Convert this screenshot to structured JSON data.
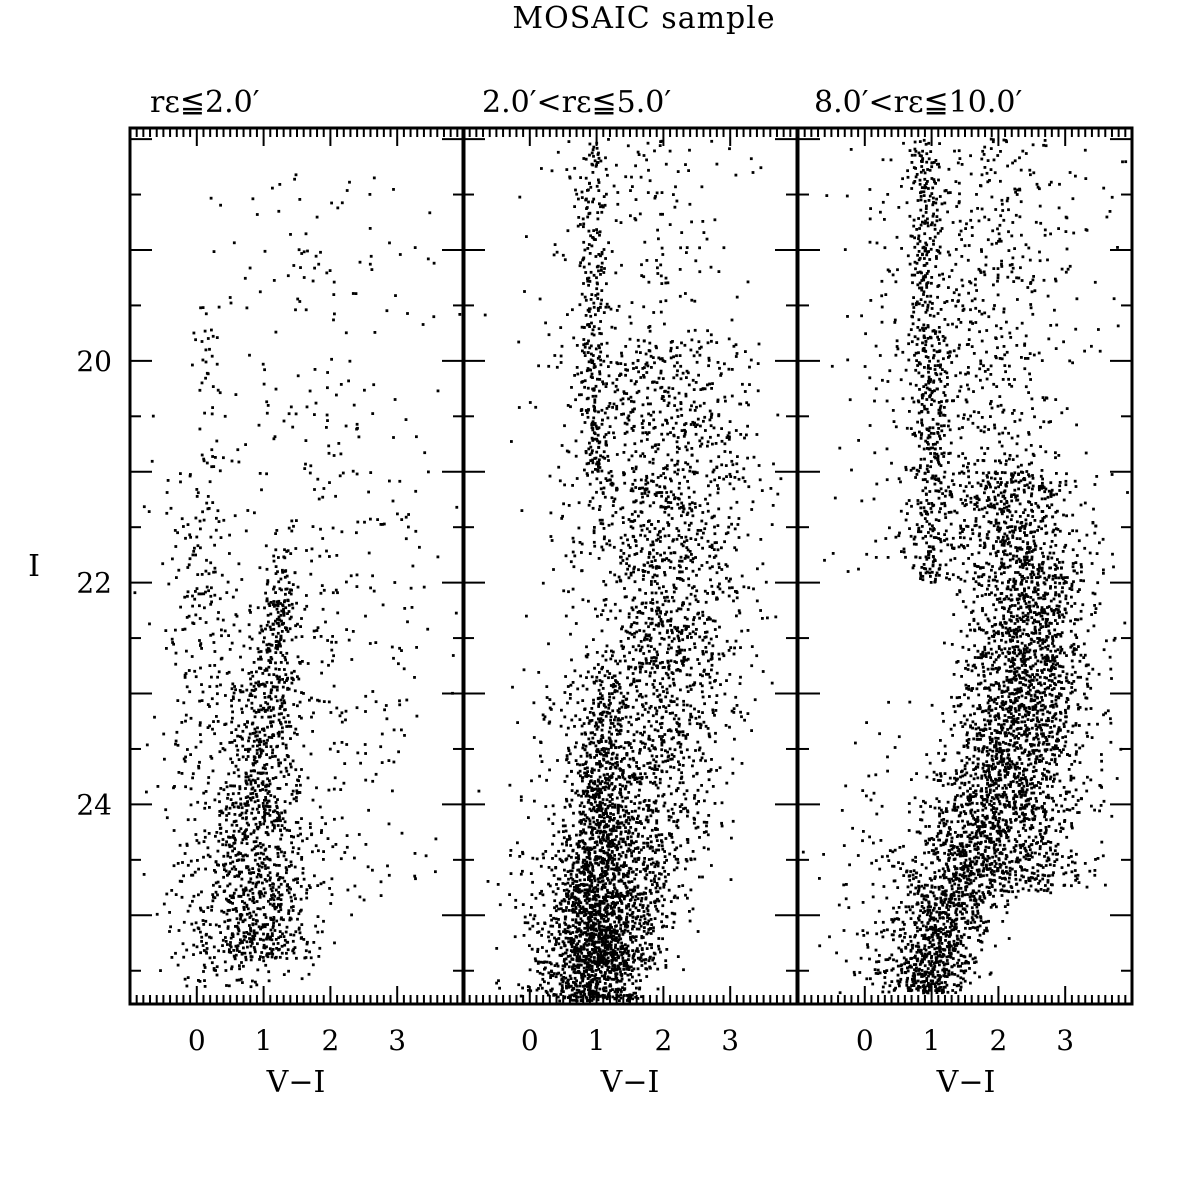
{
  "figure": {
    "suptitle": "MOSAIC sample"
  },
  "chart_data": [
    {
      "type": "scatter",
      "title": "rε≦2.0′",
      "xlabel": "V−I",
      "ylabel": "I",
      "xlim": [
        -1.0,
        4.0
      ],
      "ylim": [
        25.8,
        17.9
      ],
      "x_ticks": [
        0,
        1,
        2,
        3
      ],
      "y_ticks": [
        20,
        22,
        24
      ],
      "components": [
        {
          "n": 1100,
          "x_center": [
            [
              25.4,
              0.95
            ],
            [
              24.0,
              0.95
            ],
            [
              22.0,
              1.25
            ],
            [
              21.5,
              1.35
            ]
          ],
          "x_sigma": [
            [
              25.4,
              0.45
            ],
            [
              24.0,
              0.28
            ],
            [
              22.0,
              0.14
            ],
            [
              21.5,
              0.08
            ]
          ],
          "y_range": [
            21.4,
            25.4
          ],
          "y_bias": 0.6
        },
        {
          "n": 500,
          "x_center": [
            [
              25.6,
              0.5
            ],
            [
              24.0,
              0.2
            ],
            [
              22.0,
              0.15
            ],
            [
              21.0,
              0.1
            ]
          ],
          "x_sigma": [
            [
              25.6,
              0.55
            ],
            [
              22.0,
              0.35
            ]
          ],
          "y_range": [
            20.8,
            25.7
          ],
          "y_bias": 0.4
        },
        {
          "n": 300,
          "x_center": [
            [
              25.0,
              1.6
            ],
            [
              23.0,
              2.2
            ],
            [
              21.0,
              2.5
            ]
          ],
          "x_sigma": [
            [
              25.0,
              0.7
            ],
            [
              21.0,
              0.8
            ]
          ],
          "y_range": [
            21.0,
            25.0
          ],
          "y_bias": 0.0
        },
        {
          "n": 140,
          "x_center": [
            [
              21.0,
              2.0
            ],
            [
              18.5,
              1.8
            ]
          ],
          "x_sigma": [
            [
              21.0,
              0.9
            ]
          ],
          "y_range": [
            18.3,
            21.0
          ],
          "y_bias": 0.0
        },
        {
          "n": 40,
          "x_center": [
            [
              21.0,
              0.2
            ],
            [
              19.5,
              0.1
            ]
          ],
          "x_sigma": [
            [
              21.0,
              0.12
            ]
          ],
          "y_range": [
            19.5,
            21.0
          ],
          "y_bias": 0.0
        }
      ]
    },
    {
      "type": "scatter",
      "title": "2.0′<rε≦5.0′",
      "xlabel": "V−I",
      "xlim": [
        -1.0,
        4.0
      ],
      "ylim": [
        25.8,
        17.9
      ],
      "x_ticks": [
        0,
        1,
        2,
        3
      ],
      "y_ticks": [
        20,
        22,
        24
      ],
      "components": [
        {
          "n": 1700,
          "x_center": [
            [
              25.8,
              0.95
            ],
            [
              24.5,
              1.0
            ],
            [
              23.5,
              1.1
            ],
            [
              22.6,
              1.2
            ]
          ],
          "x_sigma": [
            [
              25.8,
              0.38
            ],
            [
              24.5,
              0.28
            ],
            [
              22.6,
              0.1
            ]
          ],
          "y_range": [
            22.5,
            25.8
          ],
          "y_bias": 0.8
        },
        {
          "n": 2300,
          "x_center": [
            [
              25.5,
              1.3
            ],
            [
              24.0,
              1.8
            ],
            [
              22.0,
              2.1
            ],
            [
              20.0,
              2.0
            ]
          ],
          "x_sigma": [
            [
              25.5,
              0.35
            ],
            [
              24.0,
              0.55
            ],
            [
              22.0,
              0.65
            ],
            [
              20.0,
              0.7
            ]
          ],
          "y_range": [
            19.8,
            25.5
          ],
          "y_bias": 0.2
        },
        {
          "n": 400,
          "x_center": [
            [
              22.0,
              1.6
            ],
            [
              18.0,
              1.6
            ]
          ],
          "x_sigma": [
            [
              22.0,
              0.8
            ]
          ],
          "y_range": [
            18.0,
            22.0
          ],
          "y_bias": 0.0
        },
        {
          "n": 250,
          "x_center": [
            [
              21.0,
              1.0
            ],
            [
              18.0,
              0.9
            ]
          ],
          "x_sigma": [
            [
              21.0,
              0.12
            ]
          ],
          "y_range": [
            18.0,
            21.0
          ],
          "y_bias": 0.0
        },
        {
          "n": 200,
          "x_center": [
            [
              25.5,
              0.3
            ],
            [
              22.5,
              0.4
            ]
          ],
          "x_sigma": [
            [
              25.5,
              0.4
            ]
          ],
          "y_range": [
            22.5,
            25.7
          ],
          "y_bias": 0.5
        }
      ]
    },
    {
      "type": "scatter",
      "title": "8.0′<rε≦10.0′",
      "xlabel": "V−I",
      "xlim": [
        -1.0,
        4.0
      ],
      "ylim": [
        25.8,
        17.9
      ],
      "x_ticks": [
        0,
        1,
        2,
        3
      ],
      "y_ticks": [
        20,
        22,
        24
      ],
      "components": [
        {
          "n": 2100,
          "x_center": [
            [
              25.7,
              0.95
            ],
            [
              25.0,
              1.2
            ],
            [
              24.0,
              1.9
            ],
            [
              23.0,
              2.4
            ],
            [
              22.0,
              2.5
            ]
          ],
          "x_sigma": [
            [
              25.7,
              0.3
            ],
            [
              24.0,
              0.45
            ],
            [
              22.0,
              0.45
            ]
          ],
          "y_range": [
            21.8,
            25.7
          ],
          "y_bias": 0.4
        },
        {
          "n": 1500,
          "x_center": [
            [
              24.0,
              2.4
            ],
            [
              22.5,
              2.5
            ],
            [
              21.0,
              2.3
            ]
          ],
          "x_sigma": [
            [
              22.5,
              0.5
            ]
          ],
          "y_range": [
            21.0,
            24.8
          ],
          "y_bias": 0.0
        },
        {
          "n": 900,
          "x_center": [
            [
              22.0,
              1.7
            ],
            [
              18.0,
              1.8
            ]
          ],
          "x_sigma": [
            [
              22.0,
              0.8
            ]
          ],
          "y_range": [
            18.0,
            22.0
          ],
          "y_bias": 0.0
        },
        {
          "n": 450,
          "x_center": [
            [
              22.0,
              1.0
            ],
            [
              18.0,
              0.9
            ]
          ],
          "x_sigma": [
            [
              22.0,
              0.12
            ]
          ],
          "y_range": [
            18.0,
            22.0
          ],
          "y_bias": 0.0
        },
        {
          "n": 200,
          "x_center": [
            [
              25.6,
              0.5
            ],
            [
              23.5,
              0.6
            ]
          ],
          "x_sigma": [
            [
              25.6,
              0.5
            ]
          ],
          "y_range": [
            23.0,
            25.7
          ],
          "y_bias": 0.5
        }
      ]
    }
  ]
}
